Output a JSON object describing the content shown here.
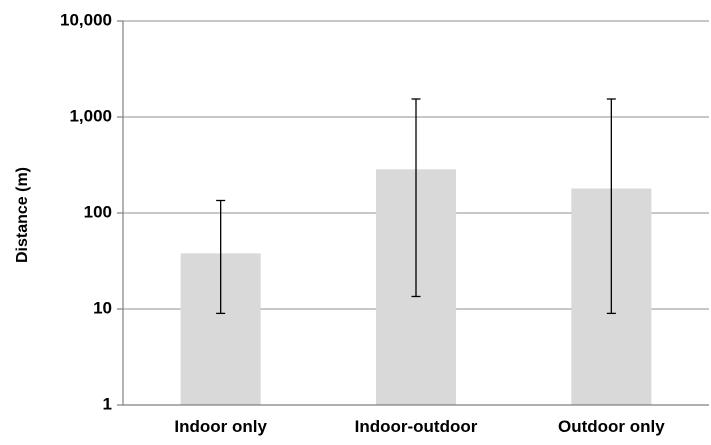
{
  "chart_data": {
    "type": "bar",
    "title": "",
    "xlabel": "",
    "ylabel": "Distance (m)",
    "y_scale": "log",
    "ylim": [
      1,
      10000
    ],
    "y_ticks": [
      1,
      10,
      100,
      1000,
      10000
    ],
    "y_tick_labels": [
      "1",
      "10",
      "100",
      "1,000",
      "10,000"
    ],
    "grid": "horizontal",
    "legend": "none",
    "categories": [
      "Indoor only",
      "Indoor-outdoor",
      "Outdoor only"
    ],
    "values": [
      38,
      285,
      180
    ],
    "error_low": [
      9,
      13.5,
      9
    ],
    "error_high": [
      135,
      1540,
      1540
    ],
    "colors": {
      "bar": "#d9d9d9",
      "grid": "#a6a6a6",
      "error_bar": "#000000",
      "axis": "#808080"
    }
  }
}
